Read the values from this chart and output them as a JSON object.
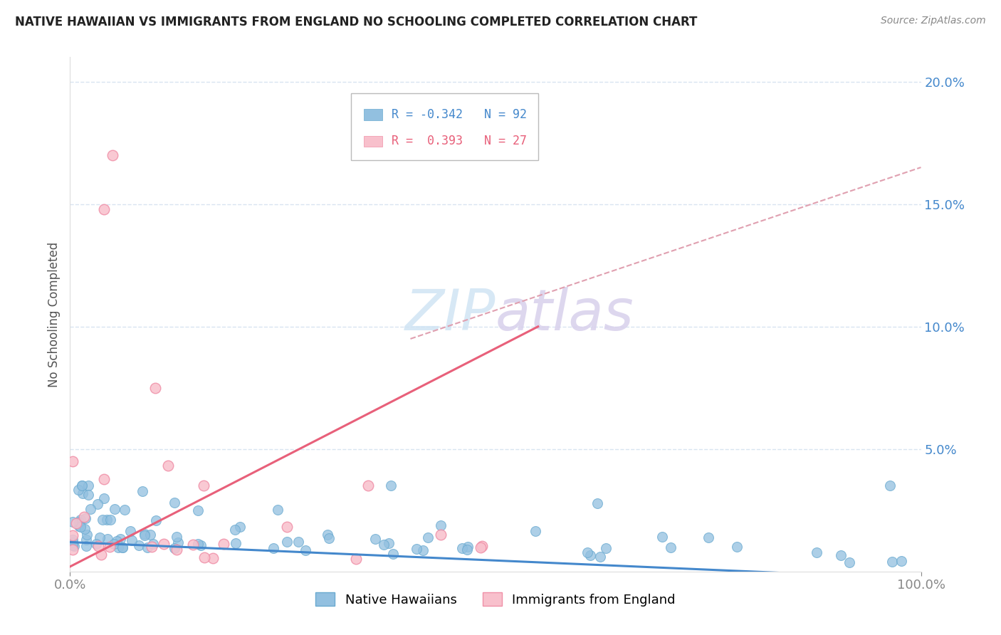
{
  "title": "NATIVE HAWAIIAN VS IMMIGRANTS FROM ENGLAND NO SCHOOLING COMPLETED CORRELATION CHART",
  "source": "Source: ZipAtlas.com",
  "ylabel": "No Schooling Completed",
  "blue_color": "#92c0e0",
  "blue_edge_color": "#6aaad0",
  "pink_color": "#f8c0cc",
  "pink_edge_color": "#f090a8",
  "blue_trend_color": "#4488cc",
  "pink_trend_color": "#e8607a",
  "dashed_line_color": "#e0a0b0",
  "watermark_zip_color": "#d0e4f4",
  "watermark_atlas_color": "#d8d0ec",
  "background_color": "#ffffff",
  "grid_color": "#d8e4f0",
  "title_color": "#222222",
  "source_color": "#888888",
  "ylabel_color": "#555555",
  "ytick_color": "#4488cc",
  "xtick_color": "#888888",
  "xlim": [
    0,
    100
  ],
  "ylim": [
    0,
    21
  ],
  "ytick_positions": [
    0,
    5,
    10,
    15,
    20
  ],
  "ytick_labels": [
    "",
    "5.0%",
    "10.0%",
    "15.0%",
    "20.0%"
  ],
  "xtick_positions": [
    0,
    100
  ],
  "xtick_labels": [
    "0.0%",
    "100.0%"
  ],
  "blue_trend_x0": 0,
  "blue_trend_x1": 100,
  "blue_trend_y0": 1.2,
  "blue_trend_y1": -0.3,
  "pink_trend_x0": 0,
  "pink_trend_x1": 55,
  "pink_trend_y0": 0.2,
  "pink_trend_y1": 10.0,
  "dashed_x0": 40,
  "dashed_x1": 100,
  "dashed_y0": 9.5,
  "dashed_y1": 16.5,
  "legend_blue_label": "R = -0.342   N = 92",
  "legend_pink_label": "R =  0.393   N = 27",
  "series_labels": [
    "Native Hawaiians",
    "Immigrants from England"
  ]
}
